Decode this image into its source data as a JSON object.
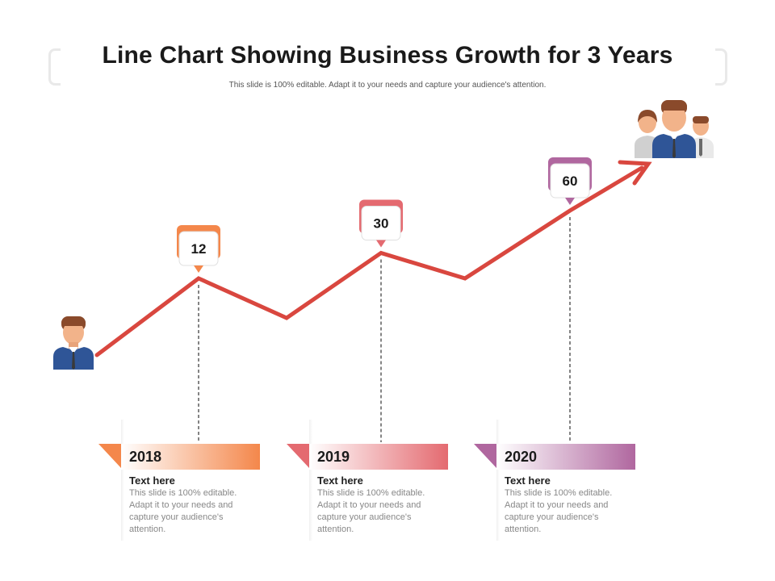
{
  "slide": {
    "title": "Line Chart Showing Business Growth for 3 Years",
    "subtitle": "This slide is 100% editable. Adapt it to your needs and capture your audience's attention."
  },
  "chart_data": {
    "type": "line",
    "title": "Line Chart Showing Business Growth for 3 Years",
    "categories": [
      "2018",
      "2019",
      "2020"
    ],
    "values": [
      12,
      30,
      60
    ],
    "callouts": [
      {
        "label": "12",
        "color": "#f4874b"
      },
      {
        "label": "30",
        "color": "#e46a70"
      },
      {
        "label": "60",
        "color": "#b0679f"
      }
    ],
    "line_color": "#d9473f"
  },
  "cards": [
    {
      "year": "2018",
      "heading": "Text here",
      "body": "This slide is 100% editable. Adapt it to your needs and capture your audience's attention.",
      "color": "#f4874b"
    },
    {
      "year": "2019",
      "heading": "Text here",
      "body": "This slide is 100% editable. Adapt it to your needs and capture your audience's attention.",
      "color": "#e46a70"
    },
    {
      "year": "2020",
      "heading": "Text here",
      "body": "This slide is 100% editable. Adapt it to your needs and capture your audience's attention.",
      "color": "#b0679f"
    }
  ]
}
